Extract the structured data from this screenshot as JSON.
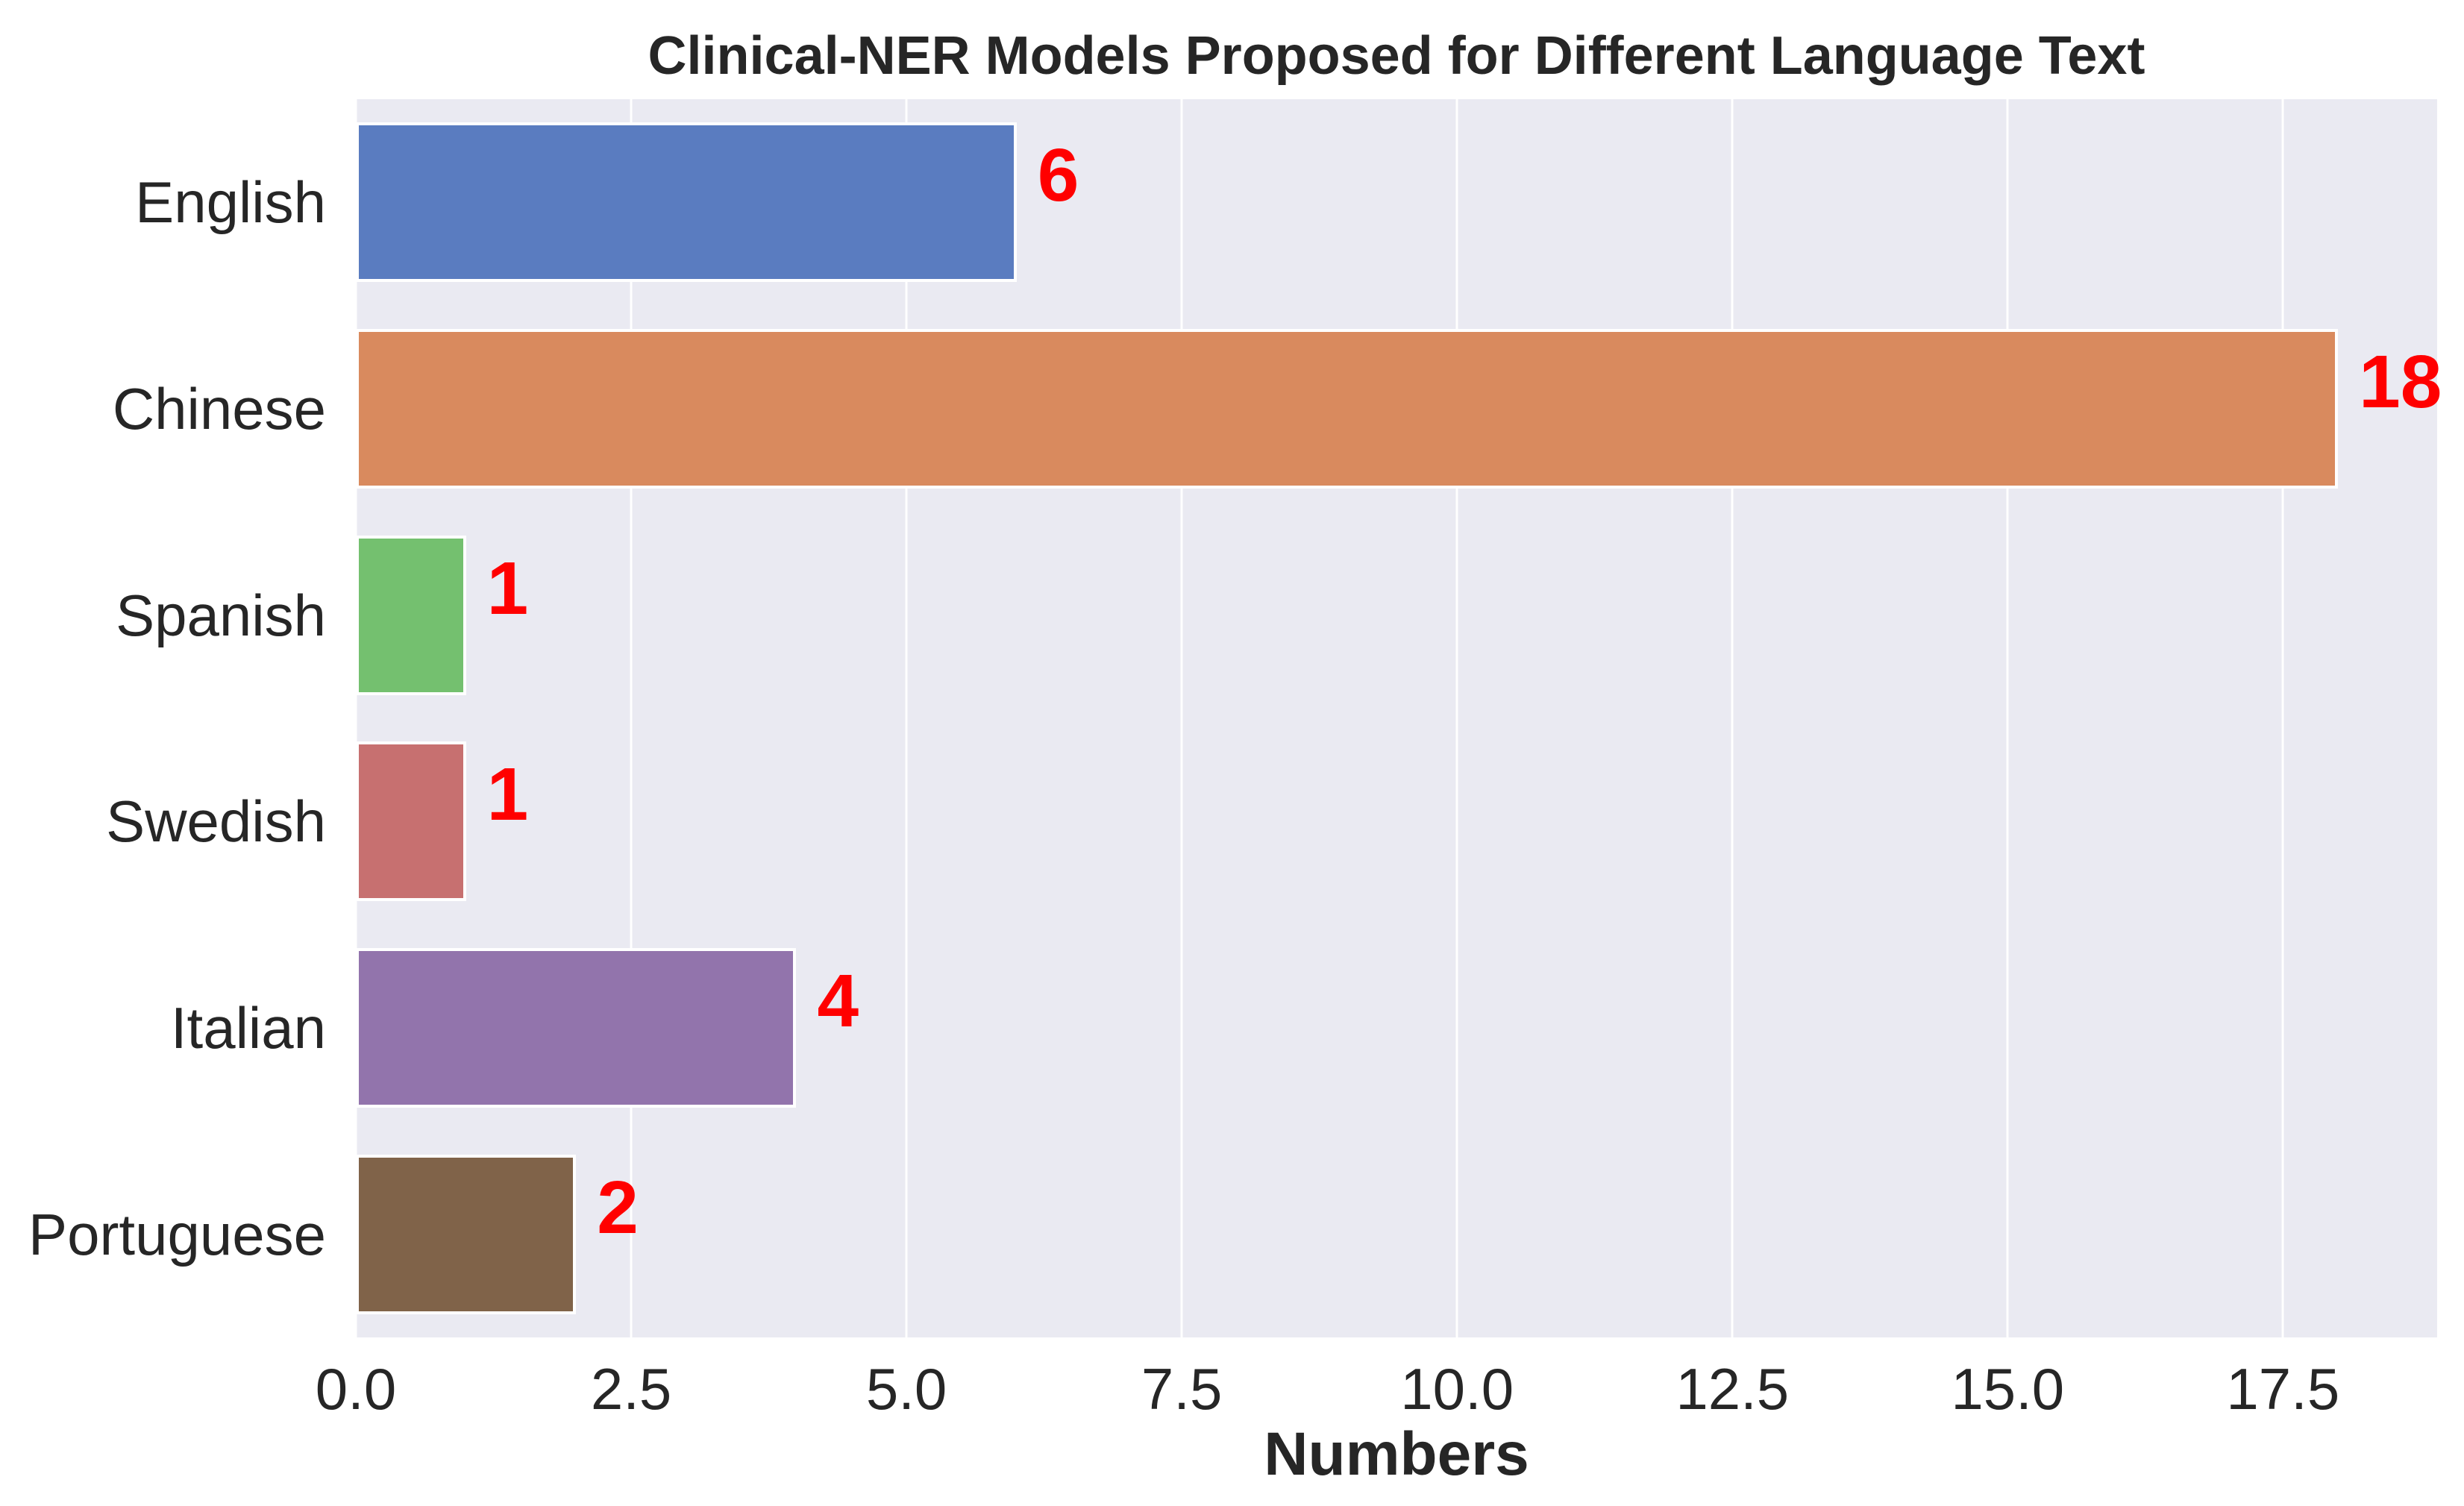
{
  "chart_data": {
    "type": "bar",
    "orientation": "horizontal",
    "title": "Clinical-NER Models Proposed for Different Language Text",
    "xlabel": "Numbers",
    "ylabel": "",
    "categories": [
      "English",
      "Chinese",
      "Spanish",
      "Swedish",
      "Italian",
      "Portuguese"
    ],
    "values": [
      6,
      18,
      1,
      1,
      4,
      2
    ],
    "value_labels": [
      "6",
      "18",
      "1",
      "1",
      "4",
      "2"
    ],
    "bar_colors": [
      "#5a7cc0",
      "#d98a5e",
      "#74c06f",
      "#c77070",
      "#9274ac",
      "#806349"
    ],
    "xticks": [
      0.0,
      2.5,
      5.0,
      7.5,
      10.0,
      12.5,
      15.0,
      17.5
    ],
    "xtick_labels": [
      "0.0",
      "2.5",
      "5.0",
      "7.5",
      "10.0",
      "12.5",
      "15.0",
      "17.5"
    ],
    "xlim": [
      0,
      18.9
    ],
    "grid": true,
    "legend": "none",
    "colors": {
      "figure_background": "#ffffff",
      "plot_background": "#eaeaf2",
      "gridline": "#ffffff",
      "bar_edge": "#ffffff",
      "text": "#262626",
      "value_label_color": "#ff0000"
    }
  }
}
